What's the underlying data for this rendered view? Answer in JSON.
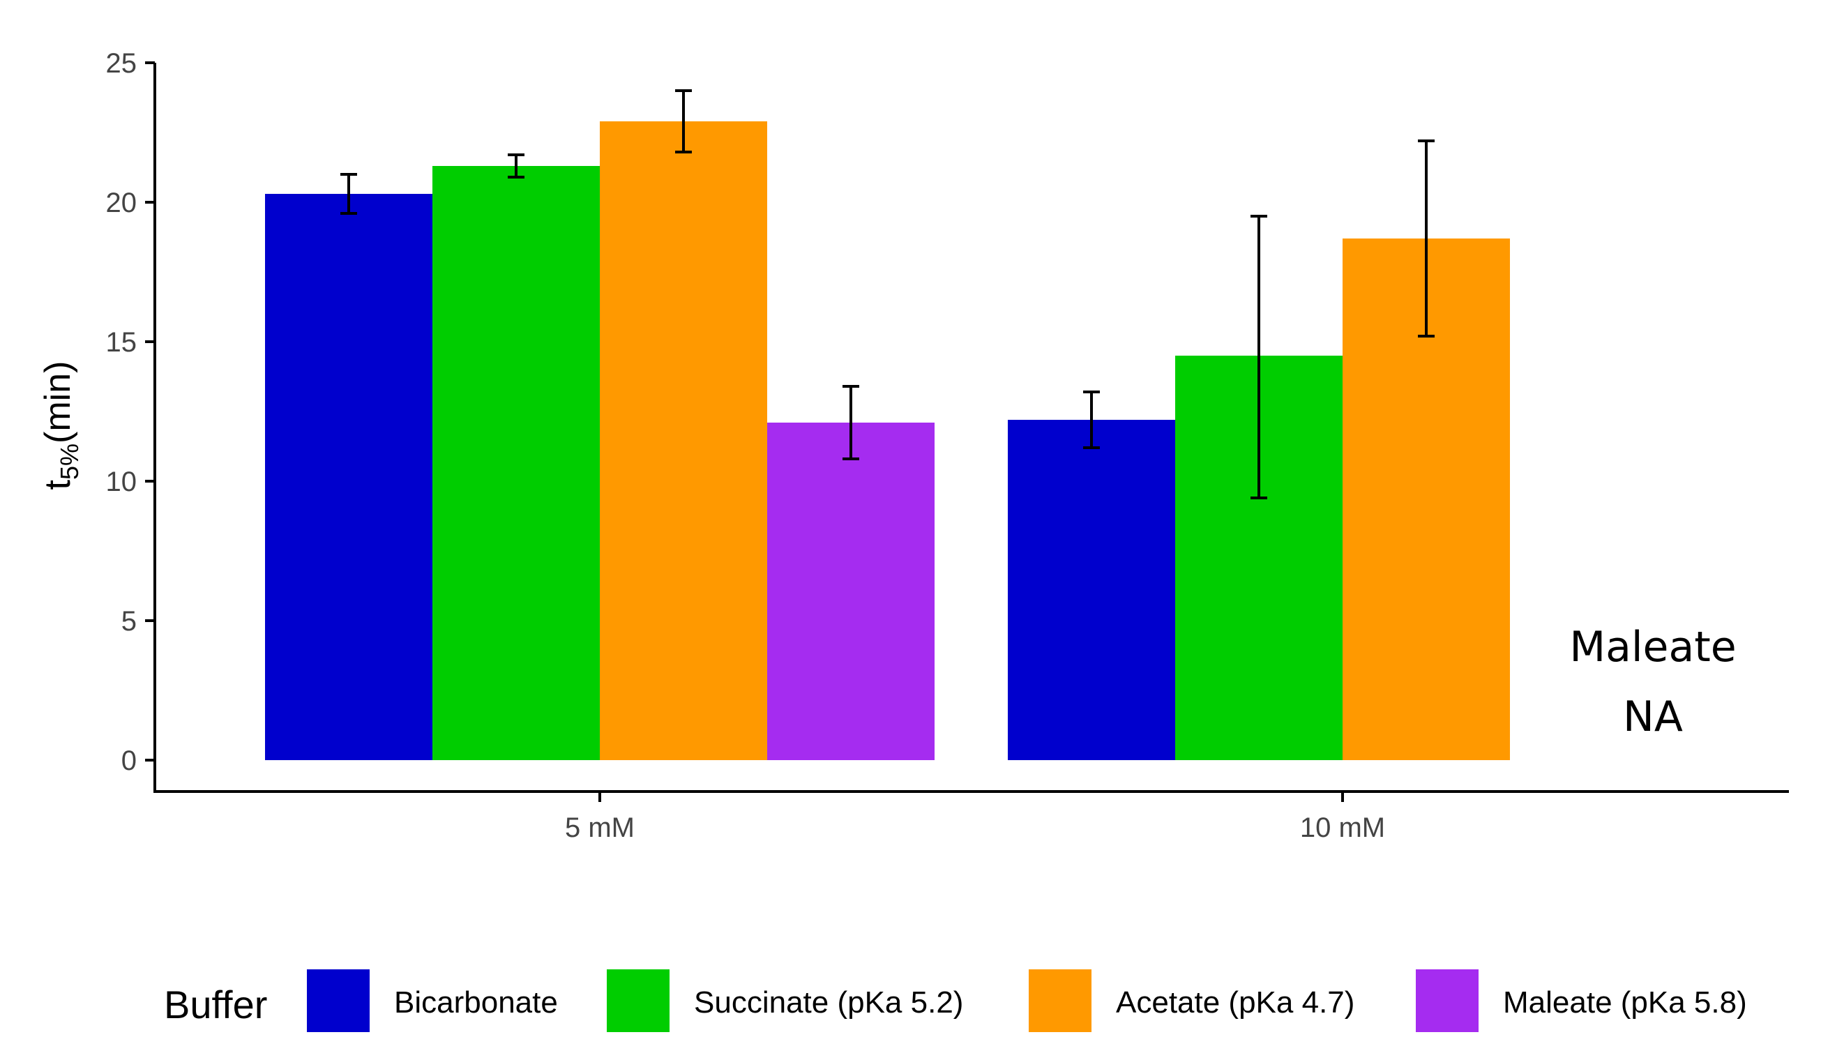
{
  "chart_data": {
    "type": "bar",
    "title": "",
    "xlabel": "",
    "ylabel": "t",
    "ylabel_subscript": "5%",
    "ylabel_unit": "(min)",
    "ylim": [
      0,
      25
    ],
    "yticks": [
      0,
      5,
      10,
      15,
      20,
      25
    ],
    "categories": [
      "5 mM",
      "10 mM"
    ],
    "series": [
      {
        "name": "Bicarbonate",
        "color": "#0000CD",
        "values": [
          20.3,
          12.2
        ],
        "errors": [
          [
            19.6,
            21.0
          ],
          [
            11.2,
            13.2
          ]
        ]
      },
      {
        "name": "Succinate (pKa 5.2)",
        "color": "#00CD00",
        "values": [
          21.3,
          14.5
        ],
        "errors": [
          [
            20.9,
            21.7
          ],
          [
            9.4,
            19.5
          ]
        ]
      },
      {
        "name": "Acetate (pKa 4.7)",
        "color": "#FF9900",
        "values": [
          22.9,
          18.7
        ],
        "errors": [
          [
            21.8,
            24.0
          ],
          [
            15.2,
            22.2
          ]
        ]
      },
      {
        "name": "Maleate (pKa 5.8)",
        "color": "#A52CF0",
        "values": [
          12.1,
          null
        ],
        "errors": [
          [
            10.8,
            13.4
          ],
          null
        ]
      }
    ],
    "annotation": {
      "line1": "Maleate",
      "line2": "NA"
    },
    "legend": {
      "title": "Buffer",
      "position": "bottom"
    },
    "grid": false
  }
}
